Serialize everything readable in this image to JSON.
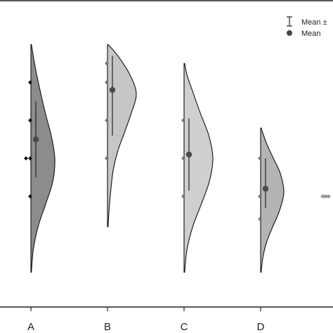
{
  "chart_data": {
    "type": "half-violin",
    "categories": [
      "A",
      "B",
      "C",
      "D"
    ],
    "legend": {
      "placement": "top-right",
      "entries": [
        {
          "label": "Mean ±",
          "marker": "errorbar"
        },
        {
          "label": "Mean",
          "marker": "dot"
        }
      ]
    },
    "groups": [
      {
        "category": "A",
        "fill": "#8c8c8c",
        "dist_range": [
          -1.2,
          4.8
        ],
        "points": [
          0.8,
          1.8,
          1.8,
          2.8,
          3.8
        ],
        "mean": 2.3,
        "err_low": 1.3,
        "err_high": 3.3,
        "density": [
          [
            -1.2,
            0.02
          ],
          [
            -0.6,
            0.1
          ],
          [
            0.0,
            0.3
          ],
          [
            0.6,
            0.62
          ],
          [
            1.2,
            0.92
          ],
          [
            1.8,
            1.0
          ],
          [
            2.4,
            0.85
          ],
          [
            3.0,
            0.6
          ],
          [
            3.6,
            0.38
          ],
          [
            4.2,
            0.18
          ],
          [
            4.8,
            0.02
          ]
        ]
      },
      {
        "category": "B",
        "fill": "#c6c6c6",
        "dist_range": [
          0.0,
          4.8
        ],
        "points": [
          1.8,
          2.8,
          3.8,
          4.3
        ],
        "mean": 3.6,
        "err_low": 2.4,
        "err_high": 4.5,
        "density": [
          [
            0.0,
            0.02
          ],
          [
            0.5,
            0.06
          ],
          [
            1.0,
            0.12
          ],
          [
            1.5,
            0.2
          ],
          [
            2.0,
            0.36
          ],
          [
            2.5,
            0.6
          ],
          [
            3.0,
            0.83
          ],
          [
            3.5,
            1.0
          ],
          [
            4.0,
            0.78
          ],
          [
            4.5,
            0.36
          ],
          [
            4.8,
            0.02
          ]
        ]
      },
      {
        "category": "C",
        "fill": "#cfcfcf",
        "dist_range": [
          -1.2,
          4.3
        ],
        "points": [
          0.8,
          1.8,
          2.8
        ],
        "mean": 1.9,
        "err_low": 0.95,
        "err_high": 2.85,
        "density": [
          [
            -1.2,
            0.02
          ],
          [
            -0.6,
            0.1
          ],
          [
            0.0,
            0.3
          ],
          [
            0.6,
            0.6
          ],
          [
            1.2,
            0.88
          ],
          [
            1.8,
            1.0
          ],
          [
            2.4,
            0.86
          ],
          [
            3.0,
            0.56
          ],
          [
            3.6,
            0.28
          ],
          [
            4.0,
            0.1
          ],
          [
            4.3,
            0.02
          ]
        ]
      },
      {
        "category": "D",
        "fill": "#b4b4b4",
        "dist_range": [
          -1.2,
          2.6
        ],
        "points": [
          0.2,
          0.8,
          1.8
        ],
        "mean": 1.0,
        "err_low": 0.5,
        "err_high": 1.8,
        "density": [
          [
            -1.2,
            0.02
          ],
          [
            -0.8,
            0.1
          ],
          [
            -0.4,
            0.26
          ],
          [
            0.0,
            0.52
          ],
          [
            0.4,
            0.8
          ],
          [
            0.9,
            1.0
          ],
          [
            1.4,
            0.85
          ],
          [
            1.8,
            0.55
          ],
          [
            2.2,
            0.25
          ],
          [
            2.6,
            0.02
          ]
        ]
      }
    ],
    "extra_group": {
      "fill": "#9a9a9a",
      "points": [
        0.8,
        0.8,
        0.8,
        0.8
      ]
    },
    "y_range": [
      -1.8,
      5.6
    ],
    "grid": false
  }
}
